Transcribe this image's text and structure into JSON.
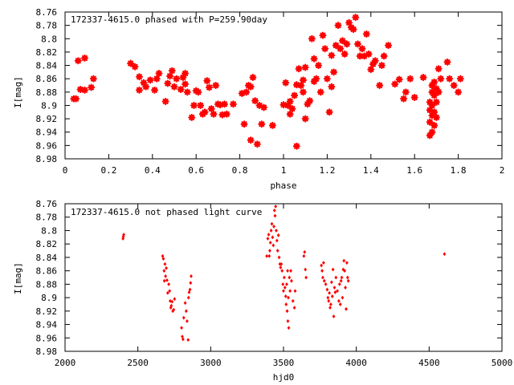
{
  "chart_data": [
    {
      "type": "scatter",
      "title": "172337-4615.0 phased with P=259.90day",
      "xlabel": "phase",
      "ylabel": "I[mag]",
      "xlim": [
        0,
        2
      ],
      "ylim": [
        8.98,
        8.76
      ],
      "y_inverted": true,
      "x_ticks": [
        "0",
        "0.2",
        "0.4",
        "0.6",
        "0.8",
        "1",
        "1.2",
        "1.4",
        "1.6",
        "1.8",
        "2"
      ],
      "y_ticks": [
        "8.76",
        "8.78",
        "8.8",
        "8.82",
        "8.84",
        "8.86",
        "8.88",
        "8.9",
        "8.92",
        "8.94",
        "8.96",
        "8.98"
      ],
      "grid": false,
      "marker_color": "#ff0000",
      "marker": "star",
      "points": [
        [
          0.04,
          8.89
        ],
        [
          0.05,
          8.89
        ],
        [
          0.06,
          8.833
        ],
        [
          0.07,
          8.876
        ],
        [
          0.09,
          8.829
        ],
        [
          0.09,
          8.877
        ],
        [
          0.12,
          8.873
        ],
        [
          0.13,
          8.86
        ],
        [
          0.3,
          8.837
        ],
        [
          0.32,
          8.842
        ],
        [
          0.34,
          8.857
        ],
        [
          0.34,
          8.877
        ],
        [
          0.36,
          8.866
        ],
        [
          0.37,
          8.872
        ],
        [
          0.39,
          8.862
        ],
        [
          0.41,
          8.877
        ],
        [
          0.42,
          8.86
        ],
        [
          0.43,
          8.852
        ],
        [
          0.46,
          8.894
        ],
        [
          0.47,
          8.867
        ],
        [
          0.48,
          8.856
        ],
        [
          0.49,
          8.848
        ],
        [
          0.5,
          8.872
        ],
        [
          0.51,
          8.86
        ],
        [
          0.53,
          8.876
        ],
        [
          0.54,
          8.858
        ],
        [
          0.55,
          8.852
        ],
        [
          0.55,
          8.868
        ],
        [
          0.56,
          8.88
        ],
        [
          0.58,
          8.918
        ],
        [
          0.59,
          8.9
        ],
        [
          0.6,
          8.878
        ],
        [
          0.61,
          8.88
        ],
        [
          0.62,
          8.9
        ],
        [
          0.63,
          8.913
        ],
        [
          0.64,
          8.91
        ],
        [
          0.65,
          8.863
        ],
        [
          0.66,
          8.873
        ],
        [
          0.67,
          8.905
        ],
        [
          0.68,
          8.913
        ],
        [
          0.69,
          8.87
        ],
        [
          0.7,
          8.898
        ],
        [
          0.71,
          8.899
        ],
        [
          0.72,
          8.914
        ],
        [
          0.73,
          8.898
        ],
        [
          0.74,
          8.913
        ],
        [
          0.77,
          8.898
        ],
        [
          0.81,
          8.882
        ],
        [
          0.82,
          8.928
        ],
        [
          0.83,
          8.88
        ],
        [
          0.84,
          8.87
        ],
        [
          0.85,
          8.952
        ],
        [
          0.85,
          8.872
        ],
        [
          0.86,
          8.858
        ],
        [
          0.87,
          8.893
        ],
        [
          0.88,
          8.958
        ],
        [
          0.89,
          8.9
        ],
        [
          0.9,
          8.928
        ],
        [
          0.91,
          8.903
        ],
        [
          0.95,
          8.93
        ],
        [
          1.0,
          8.899
        ],
        [
          1.01,
          8.866
        ],
        [
          1.02,
          8.9
        ],
        [
          1.03,
          8.894
        ],
        [
          1.03,
          8.913
        ],
        [
          1.04,
          8.905
        ],
        [
          1.05,
          8.885
        ],
        [
          1.06,
          8.961
        ],
        [
          1.06,
          8.869
        ],
        [
          1.07,
          8.845
        ],
        [
          1.08,
          8.87
        ],
        [
          1.09,
          8.88
        ],
        [
          1.09,
          8.862
        ],
        [
          1.1,
          8.92
        ],
        [
          1.1,
          8.843
        ],
        [
          1.11,
          8.898
        ],
        [
          1.12,
          8.893
        ],
        [
          1.13,
          8.8
        ],
        [
          1.14,
          8.864
        ],
        [
          1.14,
          8.83
        ],
        [
          1.15,
          8.86
        ],
        [
          1.16,
          8.84
        ],
        [
          1.17,
          8.88
        ],
        [
          1.18,
          8.795
        ],
        [
          1.19,
          8.815
        ],
        [
          1.2,
          8.86
        ],
        [
          1.21,
          8.91
        ],
        [
          1.22,
          8.872
        ],
        [
          1.22,
          8.825
        ],
        [
          1.23,
          8.85
        ],
        [
          1.24,
          8.81
        ],
        [
          1.25,
          8.78
        ],
        [
          1.26,
          8.815
        ],
        [
          1.27,
          8.803
        ],
        [
          1.28,
          8.823
        ],
        [
          1.29,
          8.808
        ],
        [
          1.3,
          8.776
        ],
        [
          1.31,
          8.783
        ],
        [
          1.32,
          8.786
        ],
        [
          1.33,
          8.768
        ],
        [
          1.34,
          8.808
        ],
        [
          1.35,
          8.826
        ],
        [
          1.36,
          8.815
        ],
        [
          1.37,
          8.826
        ],
        [
          1.38,
          8.793
        ],
        [
          1.39,
          8.823
        ],
        [
          1.4,
          8.846
        ],
        [
          1.41,
          8.838
        ],
        [
          1.42,
          8.833
        ],
        [
          1.44,
          8.87
        ],
        [
          1.45,
          8.84
        ],
        [
          1.46,
          8.826
        ],
        [
          1.48,
          8.81
        ],
        [
          1.51,
          8.868
        ],
        [
          1.53,
          8.861
        ],
        [
          1.55,
          8.89
        ],
        [
          1.56,
          8.88
        ],
        [
          1.58,
          8.86
        ],
        [
          1.6,
          8.888
        ],
        [
          1.64,
          8.858
        ],
        [
          1.67,
          8.895
        ],
        [
          1.67,
          8.907
        ],
        [
          1.67,
          8.925
        ],
        [
          1.67,
          8.945
        ],
        [
          1.68,
          8.87
        ],
        [
          1.68,
          8.88
        ],
        [
          1.68,
          8.9
        ],
        [
          1.68,
          8.915
        ],
        [
          1.68,
          8.94
        ],
        [
          1.69,
          8.865
        ],
        [
          1.69,
          8.885
        ],
        [
          1.69,
          8.91
        ],
        [
          1.69,
          8.93
        ],
        [
          1.7,
          8.875
        ],
        [
          1.7,
          8.895
        ],
        [
          1.7,
          8.918
        ],
        [
          1.71,
          8.88
        ],
        [
          1.71,
          8.845
        ],
        [
          1.72,
          8.86
        ],
        [
          1.75,
          8.835
        ],
        [
          1.76,
          8.86
        ],
        [
          1.78,
          8.87
        ],
        [
          1.8,
          8.88
        ],
        [
          1.81,
          8.86
        ]
      ]
    },
    {
      "type": "scatter",
      "title": "172337-4615.0 not phased light curve",
      "xlabel": "hjd0",
      "ylabel": "I[mag]",
      "xlim": [
        2000,
        5000
      ],
      "ylim": [
        8.98,
        8.76
      ],
      "y_inverted": true,
      "x_ticks": [
        "2000",
        "2500",
        "3000",
        "3500",
        "4000",
        "4500",
        "5000"
      ],
      "y_ticks": [
        "8.76",
        "8.78",
        "8.8",
        "8.82",
        "8.84",
        "8.86",
        "8.88",
        "8.9",
        "8.92",
        "8.94",
        "8.96",
        "8.98"
      ],
      "grid": false,
      "marker_color": "#ff0000",
      "marker": "diamond",
      "points": [
        [
          2398,
          8.812
        ],
        [
          2400,
          8.809
        ],
        [
          2403,
          8.806
        ],
        [
          2670,
          8.838
        ],
        [
          2675,
          8.842
        ],
        [
          2680,
          8.86
        ],
        [
          2682,
          8.875
        ],
        [
          2686,
          8.85
        ],
        [
          2690,
          8.868
        ],
        [
          2695,
          8.856
        ],
        [
          2700,
          8.874
        ],
        [
          2705,
          8.893
        ],
        [
          2712,
          8.88
        ],
        [
          2718,
          8.89
        ],
        [
          2722,
          8.905
        ],
        [
          2726,
          8.915
        ],
        [
          2730,
          8.912
        ],
        [
          2735,
          8.906
        ],
        [
          2740,
          8.92
        ],
        [
          2746,
          8.918
        ],
        [
          2752,
          8.902
        ],
        [
          2800,
          8.945
        ],
        [
          2805,
          8.958
        ],
        [
          2810,
          8.962
        ],
        [
          2815,
          8.93
        ],
        [
          2825,
          8.908
        ],
        [
          2832,
          8.92
        ],
        [
          2838,
          8.935
        ],
        [
          2845,
          8.963
        ],
        [
          2848,
          8.9
        ],
        [
          2852,
          8.892
        ],
        [
          2858,
          8.888
        ],
        [
          2862,
          8.878
        ],
        [
          2866,
          8.868
        ],
        [
          3385,
          8.838
        ],
        [
          3392,
          8.812
        ],
        [
          3398,
          8.806
        ],
        [
          3402,
          8.838
        ],
        [
          3406,
          8.83
        ],
        [
          3410,
          8.818
        ],
        [
          3415,
          8.8
        ],
        [
          3420,
          8.79
        ],
        [
          3425,
          8.81
        ],
        [
          3430,
          8.822
        ],
        [
          3434,
          8.794
        ],
        [
          3438,
          8.77
        ],
        [
          3442,
          8.778
        ],
        [
          3446,
          8.764
        ],
        [
          3450,
          8.8
        ],
        [
          3455,
          8.815
        ],
        [
          3460,
          8.83
        ],
        [
          3465,
          8.807
        ],
        [
          3470,
          8.84
        ],
        [
          3475,
          8.85
        ],
        [
          3480,
          8.855
        ],
        [
          3485,
          8.85
        ],
        [
          3490,
          8.86
        ],
        [
          3496,
          8.88
        ],
        [
          3500,
          8.89
        ],
        [
          3505,
          8.87
        ],
        [
          3510,
          8.885
        ],
        [
          3515,
          8.898
        ],
        [
          3518,
          8.91
        ],
        [
          3522,
          8.88
        ],
        [
          3525,
          8.92
        ],
        [
          3528,
          8.86
        ],
        [
          3530,
          8.935
        ],
        [
          3533,
          8.9
        ],
        [
          3536,
          8.945
        ],
        [
          3540,
          8.87
        ],
        [
          3545,
          8.89
        ],
        [
          3550,
          8.86
        ],
        [
          3555,
          8.875
        ],
        [
          3565,
          8.905
        ],
        [
          3575,
          8.915
        ],
        [
          3580,
          8.89
        ],
        [
          3640,
          8.838
        ],
        [
          3645,
          8.832
        ],
        [
          3650,
          8.858
        ],
        [
          3655,
          8.87
        ],
        [
          3760,
          8.852
        ],
        [
          3765,
          8.86
        ],
        [
          3770,
          8.87
        ],
        [
          3775,
          8.848
        ],
        [
          3780,
          8.875
        ],
        [
          3790,
          8.88
        ],
        [
          3800,
          8.888
        ],
        [
          3805,
          8.9
        ],
        [
          3810,
          8.905
        ],
        [
          3815,
          8.893
        ],
        [
          3820,
          8.915
        ],
        [
          3825,
          8.91
        ],
        [
          3830,
          8.877
        ],
        [
          3835,
          8.898
        ],
        [
          3840,
          8.858
        ],
        [
          3845,
          8.928
        ],
        [
          3850,
          8.885
        ],
        [
          3855,
          8.892
        ],
        [
          3860,
          8.87
        ],
        [
          3870,
          8.89
        ],
        [
          3880,
          8.905
        ],
        [
          3885,
          8.88
        ],
        [
          3890,
          8.91
        ],
        [
          3895,
          8.875
        ],
        [
          3900,
          8.87
        ],
        [
          3905,
          8.9
        ],
        [
          3910,
          8.858
        ],
        [
          3915,
          8.845
        ],
        [
          3920,
          8.86
        ],
        [
          3925,
          8.885
        ],
        [
          3930,
          8.917
        ],
        [
          3935,
          8.848
        ],
        [
          3940,
          8.87
        ],
        [
          3945,
          8.875
        ],
        [
          4605,
          8.835
        ]
      ]
    }
  ]
}
